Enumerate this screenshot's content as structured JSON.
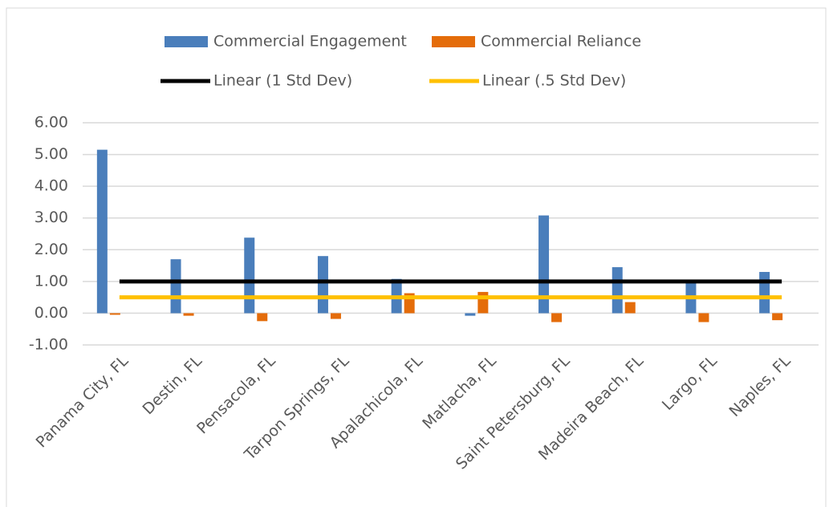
{
  "chart_data": {
    "type": "bar",
    "categories": [
      "Panama City, FL",
      "Destin, FL",
      "Pensacola, FL",
      "Tarpon Springs, FL",
      "Apalachicola, FL",
      "Matlacha, FL",
      "Saint Petersburg, FL",
      "Madeira Beach, FL",
      "Largo, FL",
      "Naples, FL"
    ],
    "series": [
      {
        "name": "Commercial Engagement",
        "type": "bar",
        "color": "#4a7ebb",
        "values": [
          5.15,
          1.7,
          2.38,
          1.8,
          1.08,
          -0.08,
          3.08,
          1.45,
          0.95,
          1.3
        ]
      },
      {
        "name": "Commercial Reliance",
        "type": "bar",
        "color": "#e46c0a",
        "values": [
          -0.05,
          -0.08,
          -0.25,
          -0.18,
          0.63,
          0.67,
          -0.28,
          0.35,
          -0.28,
          -0.22
        ]
      },
      {
        "name": "Linear (1 Std Dev)",
        "type": "line",
        "color": "#000000",
        "values": [
          1,
          1,
          1,
          1,
          1,
          1,
          1,
          1,
          1,
          1
        ]
      },
      {
        "name": "Linear (.5 Std Dev)",
        "type": "line",
        "color": "#ffc000",
        "values": [
          0.5,
          0.5,
          0.5,
          0.5,
          0.5,
          0.5,
          0.5,
          0.5,
          0.5,
          0.5
        ]
      }
    ],
    "ylim": [
      -1,
      6
    ],
    "yticks": [
      {
        "value": -1,
        "label": "-1.00"
      },
      {
        "value": 0,
        "label": "0.00"
      },
      {
        "value": 1,
        "label": "1.00"
      },
      {
        "value": 2,
        "label": "2.00"
      },
      {
        "value": 3,
        "label": "3.00"
      },
      {
        "value": 4,
        "label": "4.00"
      },
      {
        "value": 5,
        "label": "5.00"
      },
      {
        "value": 6,
        "label": "6.00"
      }
    ],
    "grid": true
  }
}
